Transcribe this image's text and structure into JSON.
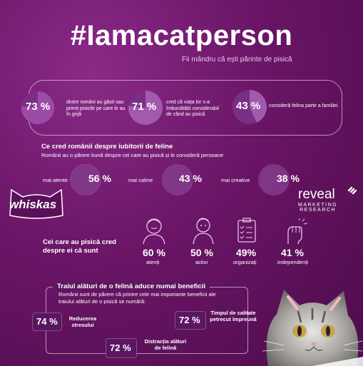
{
  "header": {
    "title": "#Iamacatperson",
    "subtitle": "Fii mândru că ești părinte de pisică"
  },
  "stats_top": [
    {
      "value": "73 %",
      "text": "dintre români au găsit sau primit pisicile pe care le au în grijă",
      "fraction": 0.73
    },
    {
      "value": "71 %",
      "text": "cred că viața lor s-a îmbunătățit considerabil de când au pisică",
      "fraction": 0.71
    },
    {
      "value": "43 %",
      "text": "consideră felina parte a familiei",
      "fraction": 0.43
    }
  ],
  "opinion": {
    "heading": "Ce cred românii despre iubitorii de feline",
    "subheading": "Românii au o părere bună despre cei care au pisică și le consideră persoane",
    "items": [
      {
        "label": "mai atente",
        "value": "56 %"
      },
      {
        "label": "mai calme",
        "value": "43 %"
      },
      {
        "label": "mai creative",
        "value": "38 %"
      }
    ]
  },
  "brands": {
    "whiskas": "whiskas",
    "reveal": "reveal",
    "reveal_sub1": "MARKETING",
    "reveal_sub2": "RESEARCH"
  },
  "self_view": {
    "heading_line1": "Cei care au pisică cred",
    "heading_line2": "despre ei că sunt",
    "items": [
      {
        "value": "60 %",
        "label": "atenți",
        "icon": "person-calm-icon"
      },
      {
        "value": "50 %",
        "label": "activi",
        "icon": "person-active-icon"
      },
      {
        "value": "49%",
        "label": "organizați",
        "icon": "checklist-icon"
      },
      {
        "value": "41 %",
        "label": "independenți",
        "icon": "raised-fist-icon"
      }
    ]
  },
  "benefits": {
    "heading": "Traiul alături de o felină aduce numai beneficii",
    "subheading_line1": "Românii sunt de părere că printre cele mai importante beneficii ale",
    "subheading_line2": "traiului alături de o pisică se numără:",
    "items": [
      {
        "value": "74 %",
        "label_line1": "Reducerea",
        "label_line2": "stresului"
      },
      {
        "value": "72 %",
        "label_line1": "Timpul de calitate",
        "label_line2": "petrecut împreună"
      },
      {
        "value": "72 %",
        "label_line1": "Distracția alături",
        "label_line2": "de felină"
      }
    ]
  },
  "colors": {
    "accent": "#b35cbf",
    "wedge": "#c483cc",
    "background": "#6a1566"
  }
}
